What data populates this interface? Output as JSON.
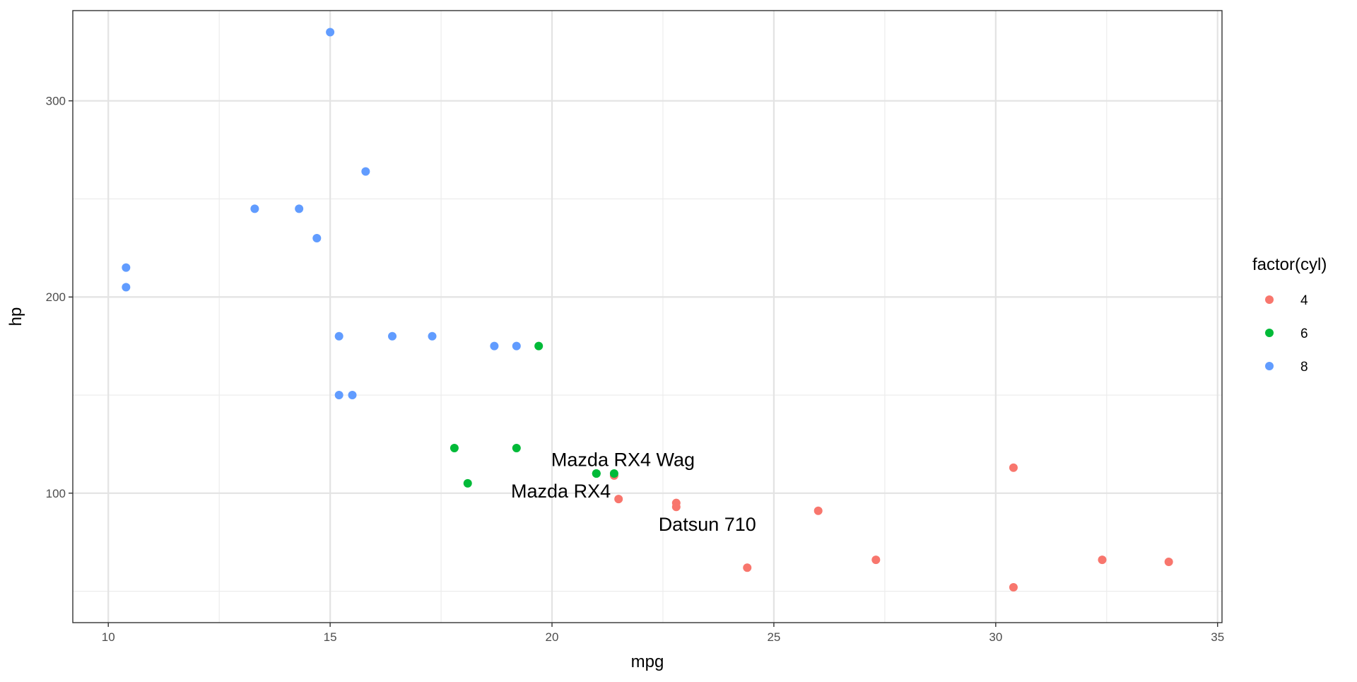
{
  "chart_data": {
    "type": "scatter",
    "title": "",
    "xlabel": "mpg",
    "ylabel": "hp",
    "xlim": [
      9.2,
      35.1
    ],
    "ylim": [
      34,
      346
    ],
    "grid": true,
    "legend_position": "right",
    "x_ticks": [
      10,
      15,
      20,
      25,
      30,
      35
    ],
    "y_ticks": [
      100,
      200,
      300
    ],
    "legend": {
      "title": "factor(cyl)",
      "entries": [
        {
          "label": "4",
          "color": "#F8766D"
        },
        {
          "label": "6",
          "color": "#00BA38"
        },
        {
          "label": "8",
          "color": "#619CFF"
        }
      ]
    },
    "series": [
      {
        "name": "4",
        "color": "#F8766D",
        "points": [
          {
            "x": 22.8,
            "y": 93
          },
          {
            "x": 24.4,
            "y": 62
          },
          {
            "x": 22.8,
            "y": 95
          },
          {
            "x": 32.4,
            "y": 66
          },
          {
            "x": 30.4,
            "y": 52
          },
          {
            "x": 33.9,
            "y": 65
          },
          {
            "x": 21.5,
            "y": 97
          },
          {
            "x": 27.3,
            "y": 66
          },
          {
            "x": 26.0,
            "y": 91
          },
          {
            "x": 30.4,
            "y": 113
          },
          {
            "x": 21.4,
            "y": 109
          }
        ]
      },
      {
        "name": "6",
        "color": "#00BA38",
        "points": [
          {
            "x": 21.0,
            "y": 110
          },
          {
            "x": 21.0,
            "y": 110
          },
          {
            "x": 21.4,
            "y": 110
          },
          {
            "x": 18.1,
            "y": 105
          },
          {
            "x": 19.2,
            "y": 123
          },
          {
            "x": 17.8,
            "y": 123
          },
          {
            "x": 19.7,
            "y": 175
          }
        ]
      },
      {
        "name": "8",
        "color": "#619CFF",
        "points": [
          {
            "x": 18.7,
            "y": 175
          },
          {
            "x": 14.3,
            "y": 245
          },
          {
            "x": 16.4,
            "y": 180
          },
          {
            "x": 17.3,
            "y": 180
          },
          {
            "x": 15.2,
            "y": 180
          },
          {
            "x": 10.4,
            "y": 205
          },
          {
            "x": 10.4,
            "y": 215
          },
          {
            "x": 14.7,
            "y": 230
          },
          {
            "x": 15.5,
            "y": 150
          },
          {
            "x": 15.2,
            "y": 150
          },
          {
            "x": 13.3,
            "y": 245
          },
          {
            "x": 19.2,
            "y": 175
          },
          {
            "x": 15.8,
            "y": 264
          },
          {
            "x": 15.0,
            "y": 335
          }
        ]
      }
    ],
    "annotations": [
      {
        "text": "Mazda RX4 Wag",
        "x": 21.6,
        "y": 117
      },
      {
        "text": "Mazda RX4",
        "x": 20.2,
        "y": 101
      },
      {
        "text": "Datsun 710",
        "x": 23.5,
        "y": 84
      }
    ]
  }
}
